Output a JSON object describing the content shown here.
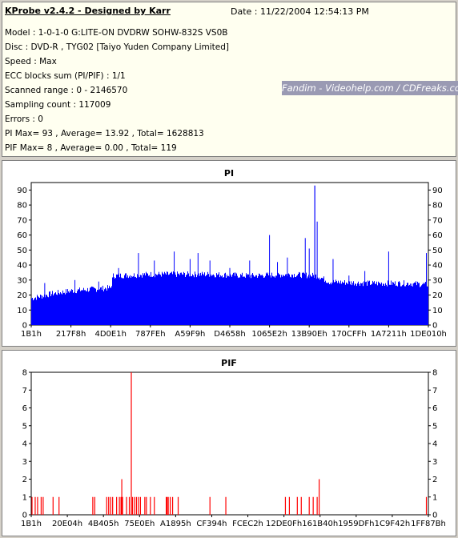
{
  "info": {
    "title": "KProbe v2.4.2 - Designed by Karr",
    "date": "Date : 11/22/2004 12:54:13 PM",
    "lines": [
      "Model : 1-0-1-0 G:LITE-ON DVDRW SOHW-832S  VS0B",
      "Disc : DVD-R , TYG02 [Taiyo Yuden Company Limited]",
      "Speed : Max",
      "ECC blocks sum (PI/PIF) : 1/1",
      "Scanned range : 0 - 2146570",
      "Sampling count : 117009",
      "Errors : 0",
      "PI Max= 93 , Average= 13.92 , Total= 1628813",
      "PIF Max= 8 , Average= 0.00 , Total= 119"
    ],
    "watermark": "Fandim - Videohelp.com / CDFreaks.com"
  },
  "chart_data": [
    {
      "type": "bar",
      "title": "PI",
      "color": "#0000ff",
      "ylim": [
        0,
        95
      ],
      "yticks": [
        0,
        10,
        20,
        30,
        40,
        50,
        60,
        70,
        80,
        90
      ],
      "xtick_labels": [
        "1B1h",
        "217F8h",
        "4D0E1h",
        "787FEh",
        "A59F9h",
        "D4658h",
        "1065E2h",
        "13B90Eh",
        "170CFFh",
        "1A7211h",
        "1DE010h"
      ],
      "baseline": [
        [
          0,
          17
        ],
        [
          0.05,
          20
        ],
        [
          0.1,
          22
        ],
        [
          0.15,
          23
        ],
        [
          0.2,
          24
        ],
        [
          0.205,
          32
        ],
        [
          0.3,
          33
        ],
        [
          0.45,
          33
        ],
        [
          0.55,
          32
        ],
        [
          0.65,
          33
        ],
        [
          0.72,
          32
        ],
        [
          0.75,
          28
        ],
        [
          0.85,
          27
        ],
        [
          0.95,
          27
        ],
        [
          1,
          26
        ]
      ],
      "noise": 4,
      "spikes": [
        {
          "x": 0.034,
          "y": 28
        },
        {
          "x": 0.11,
          "y": 30
        },
        {
          "x": 0.17,
          "y": 29
        },
        {
          "x": 0.22,
          "y": 38
        },
        {
          "x": 0.27,
          "y": 48
        },
        {
          "x": 0.31,
          "y": 43
        },
        {
          "x": 0.36,
          "y": 49
        },
        {
          "x": 0.4,
          "y": 44
        },
        {
          "x": 0.42,
          "y": 48
        },
        {
          "x": 0.45,
          "y": 43
        },
        {
          "x": 0.55,
          "y": 43
        },
        {
          "x": 0.6,
          "y": 60
        },
        {
          "x": 0.62,
          "y": 42
        },
        {
          "x": 0.645,
          "y": 45
        },
        {
          "x": 0.69,
          "y": 58
        },
        {
          "x": 0.7,
          "y": 51
        },
        {
          "x": 0.72,
          "y": 69
        },
        {
          "x": 0.76,
          "y": 44
        },
        {
          "x": 0.9,
          "y": 49
        },
        {
          "x": 0.84,
          "y": 36
        },
        {
          "x": 0.995,
          "y": 48
        },
        {
          "x": 0.8,
          "y": 33
        },
        {
          "x": 0.5,
          "y": 38
        }
      ],
      "peak": {
        "x": 0.714,
        "y": 93
      }
    },
    {
      "type": "bar",
      "title": "PIF",
      "color": "#ff0000",
      "ylim": [
        0,
        8
      ],
      "yticks": [
        0,
        1,
        2,
        3,
        4,
        5,
        6,
        7,
        8
      ],
      "xtick_labels": [
        "1B1h",
        "20E04h",
        "4B405h",
        "75E0Eh",
        "A1895h",
        "CF394h",
        "FCEC2h",
        "12DE0Fh",
        "161B40h",
        "1959DFh",
        "1C9F42h",
        "1FF87Bh"
      ],
      "bars": [
        {
          "x": 0.002,
          "y": 1
        },
        {
          "x": 0.01,
          "y": 1
        },
        {
          "x": 0.016,
          "y": 1
        },
        {
          "x": 0.025,
          "y": 1
        },
        {
          "x": 0.03,
          "y": 1
        },
        {
          "x": 0.055,
          "y": 1
        },
        {
          "x": 0.07,
          "y": 1
        },
        {
          "x": 0.155,
          "y": 1
        },
        {
          "x": 0.16,
          "y": 1
        },
        {
          "x": 0.19,
          "y": 1
        },
        {
          "x": 0.195,
          "y": 1
        },
        {
          "x": 0.2,
          "y": 1
        },
        {
          "x": 0.205,
          "y": 1
        },
        {
          "x": 0.215,
          "y": 1
        },
        {
          "x": 0.222,
          "y": 1
        },
        {
          "x": 0.226,
          "y": 1
        },
        {
          "x": 0.23,
          "y": 1
        },
        {
          "x": 0.24,
          "y": 1
        },
        {
          "x": 0.247,
          "y": 1
        },
        {
          "x": 0.255,
          "y": 1
        },
        {
          "x": 0.26,
          "y": 1
        },
        {
          "x": 0.265,
          "y": 1
        },
        {
          "x": 0.27,
          "y": 1
        },
        {
          "x": 0.275,
          "y": 1
        },
        {
          "x": 0.286,
          "y": 1
        },
        {
          "x": 0.29,
          "y": 1
        },
        {
          "x": 0.3,
          "y": 1
        },
        {
          "x": 0.31,
          "y": 1
        },
        {
          "x": 0.228,
          "y": 2
        },
        {
          "x": 0.252,
          "y": 8
        },
        {
          "x": 0.34,
          "y": 1
        },
        {
          "x": 0.342,
          "y": 1
        },
        {
          "x": 0.345,
          "y": 1
        },
        {
          "x": 0.35,
          "y": 1
        },
        {
          "x": 0.356,
          "y": 1
        },
        {
          "x": 0.37,
          "y": 1
        },
        {
          "x": 0.45,
          "y": 1
        },
        {
          "x": 0.49,
          "y": 1
        },
        {
          "x": 0.64,
          "y": 1
        },
        {
          "x": 0.65,
          "y": 1
        },
        {
          "x": 0.67,
          "y": 1
        },
        {
          "x": 0.68,
          "y": 1
        },
        {
          "x": 0.7,
          "y": 1
        },
        {
          "x": 0.71,
          "y": 1
        },
        {
          "x": 0.72,
          "y": 1
        },
        {
          "x": 0.725,
          "y": 2
        },
        {
          "x": 0.995,
          "y": 1
        }
      ]
    }
  ]
}
